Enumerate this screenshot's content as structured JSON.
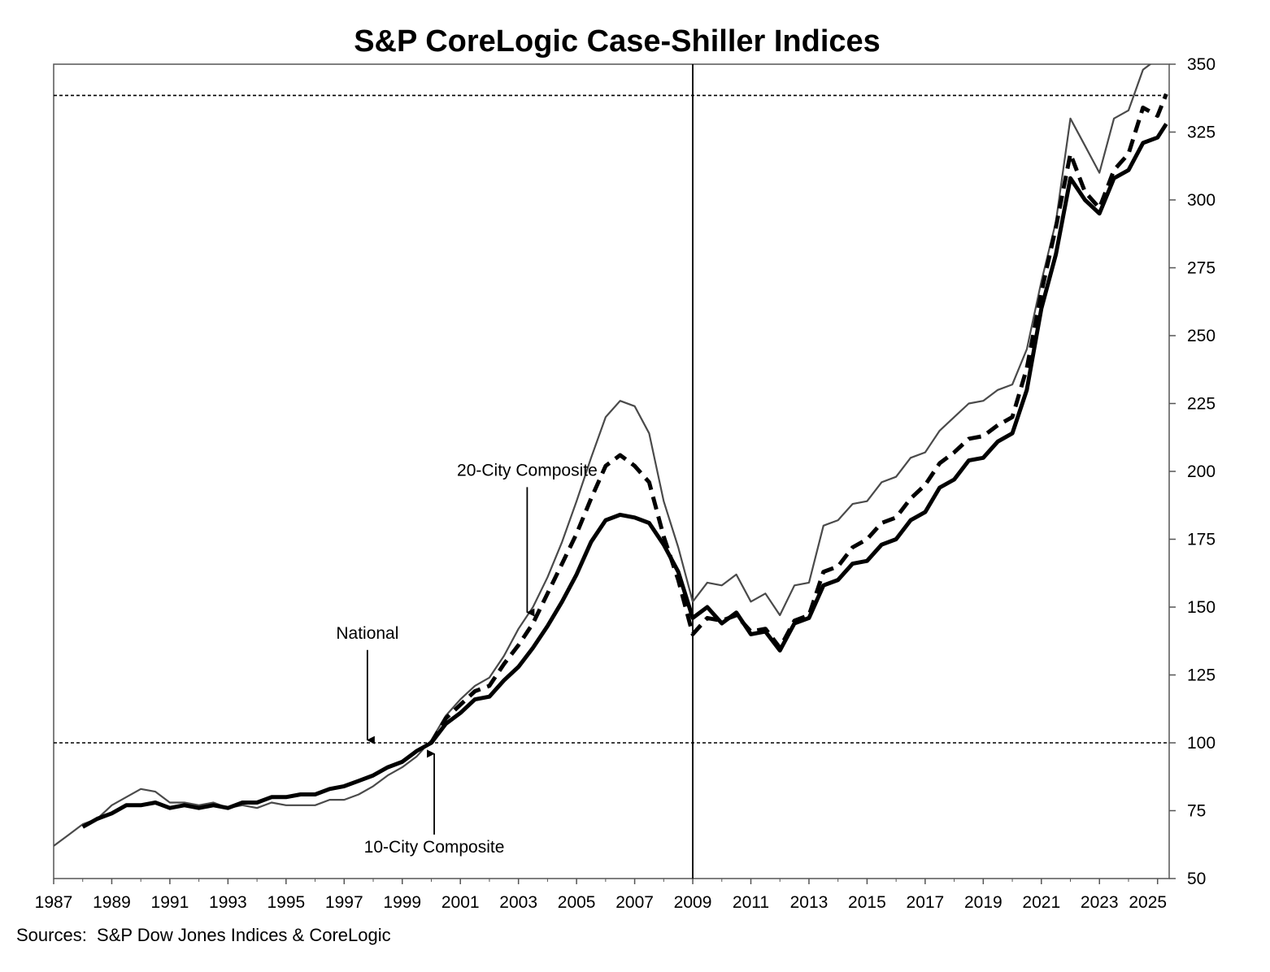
{
  "chart_data": {
    "type": "line",
    "title": "S&P CoreLogic Case-Shiller Indices",
    "source": "Sources:  S&P Dow Jones Indices & CoreLogic",
    "xlabel": "",
    "ylabel": "",
    "xlim": [
      1987,
      2025.4
    ],
    "ylim": [
      50,
      350
    ],
    "x_ticks": [
      "1987",
      "1989",
      "1991",
      "1993",
      "1995",
      "1997",
      "1999",
      "2001",
      "2003",
      "2005",
      "2007",
      "2009",
      "2011",
      "2013",
      "2015",
      "2017",
      "2019",
      "2021",
      "2023",
      "2025"
    ],
    "y_ticks": [
      "350",
      "325",
      "300",
      "275",
      "250",
      "225",
      "200",
      "175",
      "150",
      "125",
      "100",
      "75",
      "50"
    ],
    "y_axis_side": "right",
    "grid": false,
    "reference_lines": {
      "horizontal": [
        100,
        338.5
      ],
      "vertical": [
        2009
      ]
    },
    "annotations": [
      {
        "text": "20-City Composite",
        "x": 2003.3,
        "y": 196,
        "arrow_to": [
          2003.3,
          148
        ]
      },
      {
        "text": "National",
        "x": 1997.8,
        "y": 136,
        "arrow_to": [
          1997.8,
          101
        ]
      },
      {
        "text": "10-City Composite",
        "x": 2000.1,
        "y": 62,
        "arrow_to": [
          2000.1,
          96
        ]
      }
    ],
    "series": [
      {
        "name": "National",
        "style": "thick-solid",
        "x": [
          1988,
          1988.5,
          1989,
          1989.5,
          1990,
          1990.5,
          1991,
          1991.5,
          1992,
          1992.5,
          1993,
          1993.5,
          1994,
          1994.5,
          1995,
          1995.5,
          1996,
          1996.5,
          1997,
          1997.5,
          1998,
          1998.5,
          1999,
          1999.5,
          2000,
          2000.5,
          2001,
          2001.5,
          2002,
          2002.5,
          2003,
          2003.5,
          2004,
          2004.5,
          2005,
          2005.5,
          2006,
          2006.5,
          2007,
          2007.5,
          2008,
          2008.5,
          2009,
          2009.5,
          2010,
          2010.5,
          2011,
          2011.5,
          2012,
          2012.5,
          2013,
          2013.5,
          2014,
          2014.5,
          2015,
          2015.5,
          2016,
          2016.5,
          2017,
          2017.5,
          2018,
          2018.5,
          2019,
          2019.5,
          2020,
          2020.5,
          2021,
          2021.5,
          2022,
          2022.5,
          2023,
          2023.5,
          2024,
          2024.5,
          2025,
          2025.3
        ],
        "values": [
          69,
          72,
          74,
          77,
          77,
          78,
          76,
          77,
          76,
          77,
          76,
          78,
          78,
          80,
          80,
          81,
          81,
          83,
          84,
          86,
          88,
          91,
          93,
          97,
          100,
          107,
          111,
          116,
          117,
          123,
          128,
          135,
          143,
          152,
          162,
          174,
          182,
          184,
          183,
          181,
          173,
          163,
          146,
          150,
          144,
          148,
          140,
          141,
          134,
          144,
          146,
          158,
          160,
          166,
          167,
          173,
          175,
          182,
          185,
          194,
          197,
          204,
          205,
          211,
          214,
          230,
          260,
          280,
          308,
          300,
          295,
          308,
          311,
          321,
          323,
          328
        ]
      },
      {
        "name": "20-City Composite",
        "style": "thick-dashed",
        "x": [
          2000,
          2000.5,
          2001,
          2001.5,
          2002,
          2002.5,
          2003,
          2003.5,
          2004,
          2004.5,
          2005,
          2005.5,
          2006,
          2006.5,
          2007,
          2007.5,
          2008,
          2008.5,
          2009,
          2009.5,
          2010,
          2010.5,
          2011,
          2011.5,
          2012,
          2012.5,
          2013,
          2013.5,
          2014,
          2014.5,
          2015,
          2015.5,
          2016,
          2016.5,
          2017,
          2017.5,
          2018,
          2018.5,
          2019,
          2019.5,
          2020,
          2020.5,
          2021,
          2021.5,
          2022,
          2022.5,
          2023,
          2023.5,
          2024,
          2024.5,
          2025,
          2025.3
        ],
        "values": [
          100,
          109,
          114,
          119,
          121,
          129,
          136,
          144,
          155,
          166,
          177,
          190,
          202,
          206,
          202,
          196,
          176,
          160,
          140,
          146,
          145,
          147,
          141,
          142,
          135,
          145,
          147,
          163,
          165,
          172,
          175,
          181,
          183,
          190,
          195,
          203,
          207,
          212,
          213,
          217,
          220,
          238,
          266,
          290,
          317,
          303,
          297,
          311,
          317,
          334,
          331,
          339
        ]
      },
      {
        "name": "10-City Composite",
        "style": "thin-solid",
        "x": [
          1987,
          1987.5,
          1988,
          1988.5,
          1989,
          1989.5,
          1990,
          1990.5,
          1991,
          1991.5,
          1992,
          1992.5,
          1993,
          1993.5,
          1994,
          1994.5,
          1995,
          1995.5,
          1996,
          1996.5,
          1997,
          1997.5,
          1998,
          1998.5,
          1999,
          1999.5,
          2000,
          2000.5,
          2001,
          2001.5,
          2002,
          2002.5,
          2003,
          2003.5,
          2004,
          2004.5,
          2005,
          2005.5,
          2006,
          2006.5,
          2007,
          2007.5,
          2008,
          2008.5,
          2009,
          2009.5,
          2010,
          2010.5,
          2011,
          2011.5,
          2012,
          2012.5,
          2013,
          2013.5,
          2014,
          2014.5,
          2015,
          2015.5,
          2016,
          2016.5,
          2017,
          2017.5,
          2018,
          2018.5,
          2019,
          2019.5,
          2020,
          2020.5,
          2021,
          2021.5,
          2022,
          2022.5,
          2023,
          2023.5,
          2024,
          2024.5,
          2025,
          2025.3
        ],
        "values": [
          62,
          66,
          70,
          72,
          77,
          80,
          83,
          82,
          78,
          78,
          77,
          78,
          76,
          77,
          76,
          78,
          77,
          77,
          77,
          79,
          79,
          81,
          84,
          88,
          91,
          95,
          101,
          110,
          116,
          121,
          124,
          132,
          142,
          150,
          161,
          174,
          189,
          205,
          220,
          226,
          224,
          214,
          189,
          172,
          152,
          159,
          158,
          162,
          152,
          155,
          147,
          158,
          159,
          180,
          182,
          188,
          189,
          196,
          198,
          205,
          207,
          215,
          220,
          225,
          226,
          230,
          232,
          245,
          270,
          292,
          330,
          320,
          310,
          330,
          333,
          348,
          352,
          355
        ]
      }
    ]
  }
}
